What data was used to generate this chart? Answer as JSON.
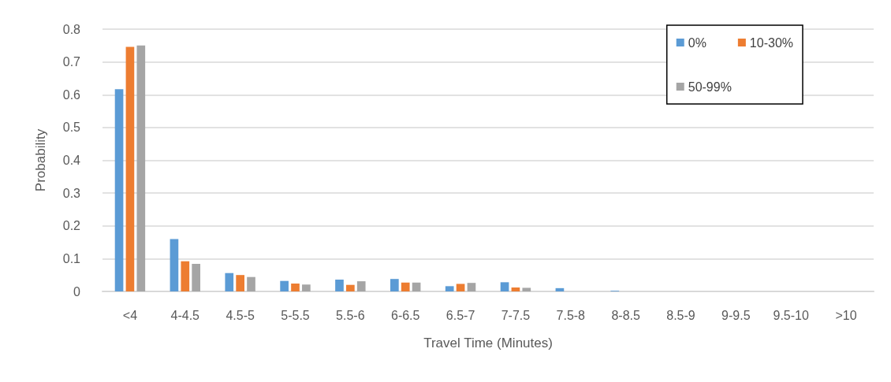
{
  "chart_data": {
    "type": "bar",
    "xlabel": "Travel Time (Minutes)",
    "ylabel": "Probability",
    "categories": [
      "<4",
      "4-4.5",
      "4.5-5",
      "5-5.5",
      "5.5-6",
      "6-6.5",
      "6.5-7",
      "7-7.5",
      "7.5-8",
      "8-8.5",
      "8.5-9",
      "9-9.5",
      "9.5-10",
      ">10"
    ],
    "series": [
      {
        "name": "0%",
        "color": "#5b9bd5",
        "values": [
          0.617,
          0.16,
          0.056,
          0.032,
          0.036,
          0.038,
          0.016,
          0.028,
          0.01,
          0.002,
          0,
          0,
          0,
          0
        ]
      },
      {
        "name": "10-30%",
        "color": "#ed7d31",
        "values": [
          0.746,
          0.092,
          0.05,
          0.024,
          0.02,
          0.027,
          0.023,
          0.012,
          0,
          0,
          0,
          0,
          0,
          0
        ]
      },
      {
        "name": "50-99%",
        "color": "#a5a5a5",
        "values": [
          0.75,
          0.084,
          0.044,
          0.021,
          0.031,
          0.027,
          0.026,
          0.011,
          0,
          0,
          0,
          0,
          0,
          0
        ]
      }
    ],
    "ylim": [
      0,
      0.8
    ],
    "yticks": [
      0,
      0.1,
      0.2,
      0.3,
      0.4,
      0.5,
      0.6,
      0.7,
      0.8
    ],
    "grid": "y",
    "legend": "top right"
  }
}
